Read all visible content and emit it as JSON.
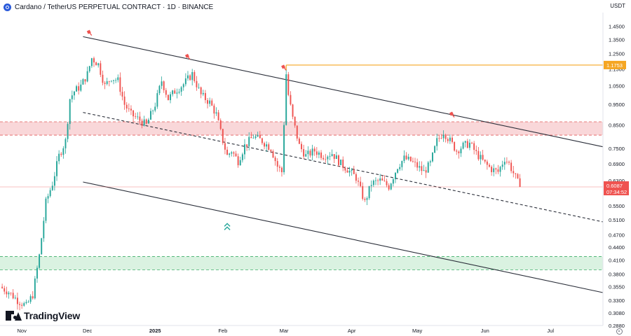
{
  "header": {
    "title": "Cardano / TetherUS PERPETUAL CONTRACT · 1D · BINANCE",
    "currency": "USDT"
  },
  "branding": {
    "logo_text": "TradingView"
  },
  "icons": {
    "coin": "cardano-icon",
    "settings": "gear-icon"
  },
  "colors": {
    "up": "#26a69a",
    "down": "#ef5350",
    "resistance_zone": "#f8d0d2",
    "support_zone": "#d4f0dc",
    "resistance_line": "#e25a5a",
    "support_line": "#3fae6a",
    "horizontal_level": "#f5a623",
    "channel": "#2a2e39"
  },
  "chart_data": {
    "type": "candlestick",
    "axis_scale": "log",
    "ylim": [
      0.288,
      1.56
    ],
    "y_ticks": [
      "1.4500",
      "1.3500",
      "1.2500",
      "1.1500",
      "1.0500",
      "0.9500",
      "0.8500",
      "0.7500",
      "0.6900",
      "0.6300",
      "0.5500",
      "0.5100",
      "0.4700",
      "0.4400",
      "0.4100",
      "0.3800",
      "0.3550",
      "0.3300",
      "0.3080",
      "0.2880"
    ],
    "y_tick_values": [
      1.45,
      1.35,
      1.25,
      1.15,
      1.05,
      0.95,
      0.85,
      0.75,
      0.69,
      0.63,
      0.55,
      0.51,
      0.47,
      0.44,
      0.41,
      0.38,
      0.355,
      0.33,
      0.308,
      0.288
    ],
    "x_ticks": [
      {
        "date": "2024-11-01",
        "label": "Nov"
      },
      {
        "date": "2024-12-01",
        "label": "Dec"
      },
      {
        "date": "2025-01-01",
        "label": "2025"
      },
      {
        "date": "2025-02-01",
        "label": "Feb"
      },
      {
        "date": "2025-03-01",
        "label": "Mar"
      },
      {
        "date": "2025-04-01",
        "label": "Apr"
      },
      {
        "date": "2025-05-01",
        "label": "May"
      },
      {
        "date": "2025-06-01",
        "label": "Jun"
      },
      {
        "date": "2025-07-01",
        "label": "Jul"
      }
    ],
    "xlim": [
      "2024-10-22",
      "2025-07-25"
    ],
    "price_path": [
      [
        "2024-10-22",
        0.355
      ],
      [
        "2024-10-26",
        0.345
      ],
      [
        "2024-10-30",
        0.33
      ],
      [
        "2024-11-03",
        0.32
      ],
      [
        "2024-11-06",
        0.34
      ],
      [
        "2024-11-09",
        0.42
      ],
      [
        "2024-11-12",
        0.56
      ],
      [
        "2024-11-15",
        0.62
      ],
      [
        "2024-11-18",
        0.72
      ],
      [
        "2024-11-21",
        0.78
      ],
      [
        "2024-11-23",
        0.98
      ],
      [
        "2024-11-25",
        1.02
      ],
      [
        "2024-11-28",
        1.05
      ],
      [
        "2024-12-01",
        1.12
      ],
      [
        "2024-12-03",
        1.22
      ],
      [
        "2024-12-06",
        1.18
      ],
      [
        "2024-12-09",
        1.05
      ],
      [
        "2024-12-12",
        1.1
      ],
      [
        "2024-12-15",
        1.08
      ],
      [
        "2024-12-18",
        0.95
      ],
      [
        "2024-12-21",
        0.9
      ],
      [
        "2024-12-24",
        0.88
      ],
      [
        "2024-12-28",
        0.85
      ],
      [
        "2025-01-01",
        0.95
      ],
      [
        "2025-01-04",
        1.08
      ],
      [
        "2025-01-07",
        0.98
      ],
      [
        "2025-01-10",
        1.02
      ],
      [
        "2025-01-14",
        1.06
      ],
      [
        "2025-01-18",
        1.12
      ],
      [
        "2025-01-22",
        1.0
      ],
      [
        "2025-01-26",
        0.96
      ],
      [
        "2025-01-29",
        0.9
      ],
      [
        "2025-02-01",
        0.78
      ],
      [
        "2025-02-03",
        0.72
      ],
      [
        "2025-02-05",
        0.74
      ],
      [
        "2025-02-08",
        0.7
      ],
      [
        "2025-02-11",
        0.76
      ],
      [
        "2025-02-15",
        0.8
      ],
      [
        "2025-02-19",
        0.78
      ],
      [
        "2025-02-23",
        0.75
      ],
      [
        "2025-02-26",
        0.68
      ],
      [
        "2025-02-28",
        0.66
      ],
      [
        "2025-03-02",
        1.12
      ],
      [
        "2025-03-03",
        1.0
      ],
      [
        "2025-03-05",
        0.88
      ],
      [
        "2025-03-08",
        0.76
      ],
      [
        "2025-03-11",
        0.72
      ],
      [
        "2025-03-15",
        0.74
      ],
      [
        "2025-03-19",
        0.72
      ],
      [
        "2025-03-23",
        0.73
      ],
      [
        "2025-03-27",
        0.69
      ],
      [
        "2025-03-30",
        0.67
      ],
      [
        "2025-04-03",
        0.64
      ],
      [
        "2025-04-07",
        0.56
      ],
      [
        "2025-04-10",
        0.62
      ],
      [
        "2025-04-14",
        0.63
      ],
      [
        "2025-04-18",
        0.61
      ],
      [
        "2025-04-22",
        0.68
      ],
      [
        "2025-04-25",
        0.71
      ],
      [
        "2025-04-28",
        0.7
      ],
      [
        "2025-05-01",
        0.68
      ],
      [
        "2025-05-04",
        0.66
      ],
      [
        "2025-05-07",
        0.69
      ],
      [
        "2025-05-10",
        0.78
      ],
      [
        "2025-05-13",
        0.82
      ],
      [
        "2025-05-16",
        0.78
      ],
      [
        "2025-05-19",
        0.74
      ],
      [
        "2025-05-22",
        0.76
      ],
      [
        "2025-05-25",
        0.77
      ],
      [
        "2025-05-28",
        0.73
      ],
      [
        "2025-06-01",
        0.69
      ],
      [
        "2025-06-04",
        0.67
      ],
      [
        "2025-06-07",
        0.66
      ],
      [
        "2025-06-10",
        0.71
      ],
      [
        "2025-06-12",
        0.69
      ],
      [
        "2025-06-15",
        0.64
      ],
      [
        "2025-06-17",
        0.6087
      ]
    ],
    "zones": [
      {
        "name": "resistance",
        "low": 0.805,
        "high": 0.865
      },
      {
        "name": "support",
        "low": 0.389,
        "high": 0.418
      }
    ],
    "channel_lines": [
      {
        "name": "upper",
        "style": "solid",
        "from": [
          "2024-11-29",
          1.37
        ],
        "to": [
          "2025-07-25",
          0.756
        ]
      },
      {
        "name": "middle",
        "style": "dashed",
        "from": [
          "2024-11-29",
          0.91
        ],
        "to": [
          "2025-07-25",
          0.504
        ]
      },
      {
        "name": "lower",
        "style": "solid",
        "from": [
          "2024-11-29",
          0.625
        ],
        "to": [
          "2025-07-25",
          0.344
        ]
      }
    ],
    "horizontal_level": {
      "value": 1.1753,
      "start": "2025-03-02",
      "label": "1.1753"
    },
    "current_price": {
      "value": 0.6087,
      "label": "0.6087",
      "countdown": "07:34:52"
    },
    "signal_markers": [
      {
        "type": "sell",
        "date": "2024-12-02",
        "value": 1.4
      },
      {
        "type": "sell",
        "date": "2025-01-16",
        "value": 1.23
      },
      {
        "type": "sell",
        "date": "2025-03-01",
        "value": 1.16
      },
      {
        "type": "sell",
        "date": "2025-05-17",
        "value": 0.9
      },
      {
        "type": "buy",
        "date": "2025-02-03",
        "value": 0.49
      }
    ]
  }
}
